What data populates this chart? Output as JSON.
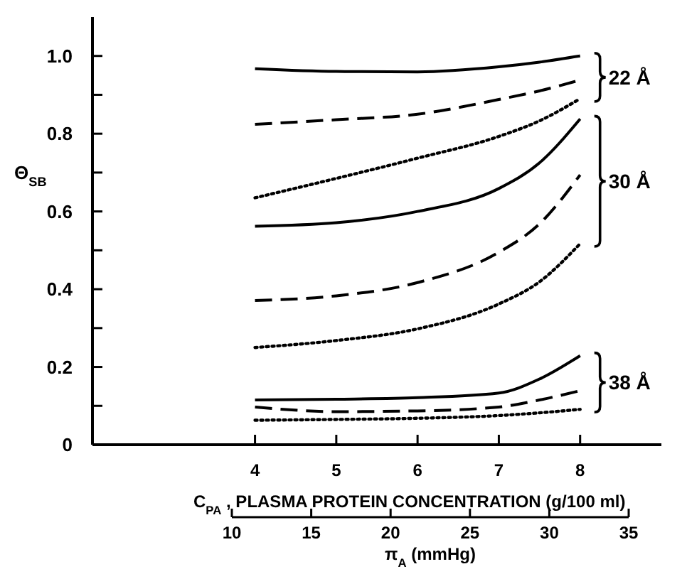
{
  "chart_data": {
    "type": "line",
    "xlabel": "C$_{PA}$ , PLASMA PROTEIN CONCENTRATION  (g/100 ml)",
    "ylabel": "Θ$_{SB}$",
    "x2label": "π$_{A}$  (mmHg)",
    "x": [
      4,
      5,
      6,
      7,
      7.5,
      8
    ],
    "series": [
      {
        "color": "#000000",
        "line_style": "solid",
        "values": [
          0.967,
          0.96,
          0.959,
          0.972,
          0.984,
          1.0
        ]
      },
      {
        "color": "#000000",
        "line_style": "dashed",
        "values": [
          0.824,
          0.836,
          0.85,
          0.888,
          0.91,
          0.938
        ]
      },
      {
        "color": "#000000",
        "line_style": "dotted",
        "values": [
          0.635,
          0.685,
          0.737,
          0.793,
          0.833,
          0.89
        ]
      },
      {
        "color": "#000000",
        "line_style": "solid",
        "values": [
          0.562,
          0.571,
          0.6,
          0.659,
          0.725,
          0.838
        ]
      },
      {
        "color": "#000000",
        "line_style": "dashed",
        "values": [
          0.371,
          0.383,
          0.417,
          0.495,
          0.568,
          0.694
        ]
      },
      {
        "color": "#000000",
        "line_style": "dotted",
        "values": [
          0.25,
          0.268,
          0.298,
          0.362,
          0.419,
          0.517
        ]
      },
      {
        "color": "#000000",
        "line_style": "solid",
        "values": [
          0.115,
          0.117,
          0.121,
          0.133,
          0.169,
          0.229
        ]
      },
      {
        "color": "#000000",
        "line_style": "dashed",
        "values": [
          0.097,
          0.085,
          0.087,
          0.097,
          0.115,
          0.139
        ]
      },
      {
        "color": "#000000",
        "line_style": "dotted",
        "values": [
          0.063,
          0.065,
          0.068,
          0.075,
          0.082,
          0.091
        ]
      }
    ],
    "xlim": [
      2,
      9
    ],
    "xticks": [
      4,
      5,
      6,
      7,
      8
    ],
    "ylim": [
      0,
      1.1
    ],
    "yticks": [
      0,
      {
        "value": 0.1,
        "label": null
      },
      0.2,
      {
        "value": 0.3,
        "label": null
      },
      0.4,
      {
        "value": 0.5,
        "label": null
      },
      0.6,
      {
        "value": 0.7,
        "label": null
      },
      0.8,
      {
        "value": 0.9,
        "label": null
      },
      {
        "value": 1.0,
        "label": "1.0"
      }
    ],
    "x2lim": [
      10,
      35
    ],
    "x2ticks": [
      10,
      15,
      20,
      25,
      30,
      35
    ],
    "annotations": [
      "22 Å",
      "30 Å",
      "38 Å"
    ]
  }
}
